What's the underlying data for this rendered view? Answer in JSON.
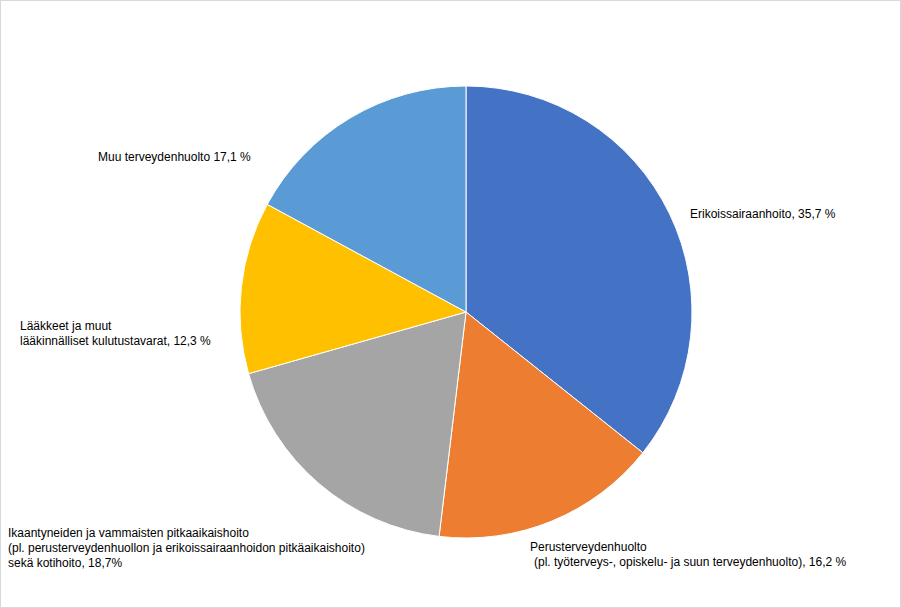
{
  "chart_data": {
    "type": "pie",
    "categories": [
      "Erikoissairaanhoito, 35,7 %",
      "Perusterveydenhuolto\n(pl. työterveys-, opiskelu- ja suun terveydenhuolto), 16,2 %",
      "Ikaantyneiden ja vammaisten pitkaaikaishoito\n(pl. perusterveydenhuollon ja erikoissairaanhoidon pitkäaikaishoito)\nsekä kotihoito, 18,7%",
      "Lääkkeet ja muut\nlääkinnälliset kulutustavarat, 12,3 %",
      "Muu terveydenhuolto 17,1 %"
    ],
    "values": [
      35.7,
      16.2,
      18.7,
      12.3,
      17.1
    ],
    "colors": [
      "#4472c4",
      "#ed7d31",
      "#a5a5a5",
      "#ffc000",
      "#5b9bd5"
    ]
  }
}
